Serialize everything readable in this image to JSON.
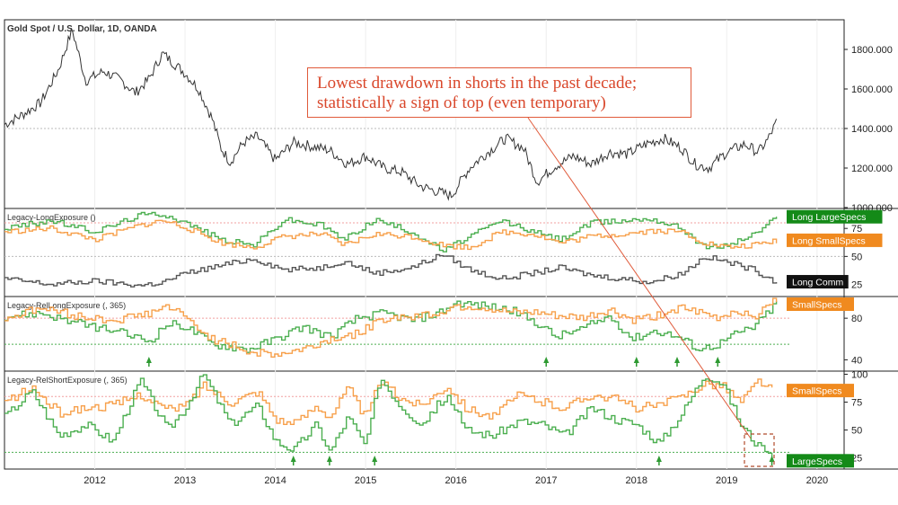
{
  "colors": {
    "price": "#333333",
    "large_specs": "#4caf50",
    "small_specs": "#f7a04b",
    "commercials": "#555555",
    "annotation": "#e05a3a",
    "badge_large": "#148a18",
    "badge_small": "#f08a1f",
    "badge_comm": "#111111",
    "ref_red": "#f2a0a0",
    "ref_green": "#4caf50"
  },
  "annotation": {
    "line1": "Lowest drawdown in shorts in the past decade;",
    "line2": "statistically a sign of top (even temporary)"
  },
  "chart_data": [
    {
      "type": "line",
      "title": "Gold Spot / U.S. Dollar, 1D, OANDA",
      "ylim": [
        1000,
        1950
      ],
      "yticks": [
        "1000.000",
        "1200.000",
        "1400.000",
        "1600.000",
        "1800.000"
      ],
      "reference_line": 1400,
      "series": [
        {
          "x": [
            2011.0,
            2011.2,
            2011.4,
            2011.6,
            2011.75,
            2011.9,
            2012.1,
            2012.3,
            2012.45,
            2012.6,
            2012.75,
            2012.9,
            2013.0,
            2013.15,
            2013.3,
            2013.4,
            2013.5,
            2013.65,
            2013.8,
            2014.0,
            2014.2,
            2014.4,
            2014.6,
            2014.8,
            2015.0,
            2015.2,
            2015.4,
            2015.6,
            2015.8,
            2015.95,
            2016.15,
            2016.3,
            2016.55,
            2016.75,
            2016.9,
            2017.1,
            2017.3,
            2017.5,
            2017.7,
            2017.9,
            2018.1,
            2018.3,
            2018.5,
            2018.65,
            2018.8,
            2019.0,
            2019.2,
            2019.35,
            2019.45,
            2019.55
          ],
          "values": [
            1420,
            1470,
            1530,
            1700,
            1900,
            1640,
            1690,
            1640,
            1580,
            1650,
            1780,
            1720,
            1680,
            1600,
            1450,
            1300,
            1230,
            1330,
            1360,
            1240,
            1330,
            1310,
            1290,
            1220,
            1260,
            1200,
            1180,
            1110,
            1080,
            1060,
            1200,
            1260,
            1350,
            1300,
            1130,
            1210,
            1260,
            1220,
            1280,
            1270,
            1320,
            1350,
            1300,
            1220,
            1200,
            1280,
            1320,
            1280,
            1340,
            1430
          ]
        }
      ]
    },
    {
      "type": "line",
      "title": "Legacy-LongExposure ()",
      "ylim": [
        15,
        92
      ],
      "yticks": [
        "25",
        "50",
        "75"
      ],
      "reference_lines": [
        80,
        50
      ],
      "x": [
        2011.0,
        2011.5,
        2012.0,
        2012.5,
        2012.75,
        2013.0,
        2013.4,
        2013.75,
        2014.1,
        2014.5,
        2014.75,
        2015.1,
        2015.5,
        2015.85,
        2016.15,
        2016.5,
        2016.85,
        2017.15,
        2017.5,
        2017.85,
        2018.15,
        2018.5,
        2018.75,
        2019.0,
        2019.3,
        2019.55
      ],
      "series": [
        {
          "name": "Long LargeSpecs",
          "values": [
            75,
            82,
            72,
            87,
            88,
            80,
            65,
            60,
            83,
            78,
            65,
            83,
            72,
            55,
            68,
            82,
            72,
            65,
            80,
            82,
            84,
            75,
            58,
            60,
            70,
            85
          ]
        },
        {
          "name": "Long SmallSpecs",
          "values": [
            72,
            75,
            65,
            78,
            82,
            76,
            62,
            58,
            68,
            70,
            60,
            70,
            68,
            60,
            58,
            72,
            70,
            62,
            68,
            70,
            73,
            72,
            62,
            58,
            60,
            64
          ]
        },
        {
          "name": "Long Comm",
          "values": [
            30,
            25,
            28,
            24,
            27,
            35,
            42,
            48,
            38,
            40,
            46,
            35,
            40,
            52,
            38,
            30,
            35,
            40,
            33,
            30,
            27,
            35,
            50,
            45,
            38,
            27
          ]
        }
      ]
    },
    {
      "type": "line",
      "title": "Legacy-RelLongExposure (, 365)",
      "ylim": [
        30,
        100
      ],
      "yticks": [
        "40",
        "80"
      ],
      "reference_lines": [
        80,
        55
      ],
      "x": [
        2011.0,
        2011.4,
        2011.8,
        2012.2,
        2012.6,
        2012.8,
        2013.0,
        2013.3,
        2013.7,
        2014.0,
        2014.3,
        2014.6,
        2014.9,
        2015.2,
        2015.5,
        2015.8,
        2016.0,
        2016.3,
        2016.6,
        2016.9,
        2017.1,
        2017.4,
        2017.7,
        2017.95,
        2018.2,
        2018.45,
        2018.7,
        2018.9,
        2019.1,
        2019.3,
        2019.55
      ],
      "series": [
        {
          "name": "LargeSpecs",
          "values": [
            82,
            85,
            75,
            68,
            58,
            75,
            72,
            55,
            50,
            60,
            72,
            62,
            80,
            85,
            78,
            85,
            95,
            92,
            88,
            75,
            62,
            70,
            82,
            60,
            68,
            62,
            50,
            55,
            65,
            72,
            95
          ]
        },
        {
          "name": "SmallSpecs",
          "values": [
            80,
            90,
            82,
            78,
            85,
            92,
            80,
            60,
            48,
            45,
            50,
            60,
            65,
            80,
            82,
            85,
            92,
            90,
            85,
            85,
            82,
            80,
            88,
            78,
            82,
            90,
            85,
            80,
            88,
            82,
            98
          ]
        }
      ],
      "markers_x": [
        2012.6,
        2017.0,
        2018.0,
        2018.45,
        2018.9
      ]
    },
    {
      "type": "line",
      "title": "Legacy-RelShortExposure (, 365)",
      "ylim": [
        15,
        102
      ],
      "yticks": [
        "25",
        "50",
        "75",
        "100"
      ],
      "reference_lines": [
        80,
        30
      ],
      "x": [
        2011.0,
        2011.3,
        2011.6,
        2011.9,
        2012.2,
        2012.5,
        2012.8,
        2013.0,
        2013.2,
        2013.5,
        2013.8,
        2014.0,
        2014.2,
        2014.45,
        2014.6,
        2014.8,
        2015.0,
        2015.15,
        2015.35,
        2015.6,
        2015.9,
        2016.1,
        2016.4,
        2016.7,
        2016.95,
        2017.2,
        2017.5,
        2017.75,
        2018.0,
        2018.25,
        2018.5,
        2018.75,
        2018.95,
        2019.15,
        2019.35,
        2019.5
      ],
      "series": [
        {
          "name": "SmallSpecs",
          "values": [
            75,
            88,
            65,
            70,
            72,
            82,
            68,
            72,
            90,
            75,
            85,
            60,
            55,
            72,
            62,
            88,
            60,
            95,
            80,
            72,
            90,
            70,
            62,
            82,
            75,
            70,
            82,
            78,
            70,
            72,
            80,
            92,
            90,
            75,
            95,
            85
          ]
        },
        {
          "name": "LargeSpecs",
          "values": [
            62,
            85,
            45,
            55,
            40,
            95,
            50,
            70,
            100,
            55,
            72,
            40,
            32,
            55,
            30,
            62,
            35,
            98,
            75,
            55,
            82,
            50,
            45,
            58,
            55,
            45,
            70,
            60,
            55,
            38,
            65,
            100,
            92,
            55,
            35,
            22
          ]
        }
      ],
      "markers_x": [
        2014.2,
        2014.6,
        2015.1,
        2018.25,
        2019.5
      ]
    }
  ],
  "x_axis": {
    "range": [
      2011.0,
      2020.3
    ],
    "ticks": [
      {
        "label": "2012",
        "value": 2012
      },
      {
        "label": "2013",
        "value": 2013
      },
      {
        "label": "2014",
        "value": 2014
      },
      {
        "label": "2015",
        "value": 2015
      },
      {
        "label": "2016",
        "value": 2016
      },
      {
        "label": "2017",
        "value": 2017
      },
      {
        "label": "2018",
        "value": 2018
      },
      {
        "label": "2019",
        "value": 2019
      },
      {
        "label": "2020",
        "value": 2020
      }
    ]
  }
}
